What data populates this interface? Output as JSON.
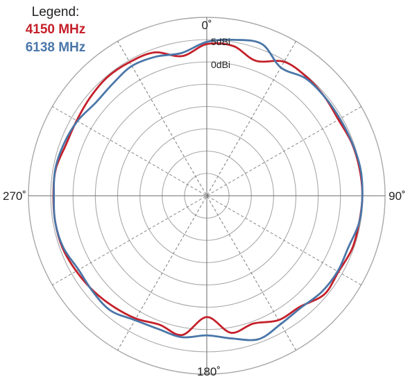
{
  "legend": {
    "title": "Legend:",
    "entries": [
      {
        "label": "4150 MHz",
        "color": "#c4202a"
      },
      {
        "label": "6138 MHz",
        "color": "#4a76a8"
      }
    ]
  },
  "chart_data": {
    "type": "line",
    "projection": "polar",
    "angle_labels": [
      "0˚",
      "90˚",
      "180˚",
      "270˚"
    ],
    "ring_labels": [
      {
        "label": "5dBi",
        "value": 5
      },
      {
        "label": "0dBi",
        "value": 0
      }
    ],
    "radial_range_dbi": [
      -35,
      5
    ],
    "ring_step_dbi": 5,
    "angle_grid_step_deg": 30,
    "series": [
      {
        "name": "4150 MHz",
        "color": "#c4202a",
        "theta_deg": [
          0,
          10,
          20,
          30,
          40,
          50,
          60,
          70,
          80,
          90,
          100,
          110,
          120,
          130,
          140,
          150,
          160,
          170,
          180,
          190,
          200,
          210,
          220,
          230,
          240,
          250,
          260,
          270,
          280,
          290,
          300,
          310,
          320,
          330,
          340,
          350,
          360
        ],
        "gain_dbi": [
          -1,
          -0.9,
          -2.8,
          -0.3,
          -0.2,
          -0.5,
          -0.9,
          -0.4,
          -0.2,
          -0.1,
          -0.3,
          -0.3,
          -0.9,
          -0.6,
          -2.5,
          -2.8,
          -4.5,
          -3.8,
          -7.8,
          -3.3,
          -4.2,
          -3.2,
          -2.5,
          -1.8,
          -1.2,
          -0.6,
          -0.5,
          -0.6,
          -0.6,
          -1.4,
          -1.3,
          -0.8,
          -0.3,
          -0.4,
          -0.8,
          -3.2,
          -1
        ]
      },
      {
        "name": "6138 MHz",
        "color": "#4a76a8",
        "theta_deg": [
          0,
          10,
          20,
          30,
          40,
          50,
          60,
          70,
          80,
          90,
          100,
          110,
          120,
          130,
          140,
          150,
          160,
          170,
          180,
          190,
          200,
          210,
          220,
          230,
          240,
          250,
          260,
          270,
          280,
          290,
          300,
          310,
          320,
          330,
          340,
          350,
          360
        ],
        "gain_dbi": [
          -0.5,
          0.5,
          1.2,
          -1.8,
          -0.6,
          -0.5,
          -0.5,
          -0.3,
          0,
          -0.1,
          -0.3,
          -1.2,
          -1.1,
          -1.4,
          -2.2,
          -1.8,
          -0.8,
          -2.5,
          -3.7,
          -2.8,
          -3.2,
          -2.8,
          -1.4,
          -1.6,
          -1.8,
          -0.8,
          -0.5,
          -0.7,
          -0.5,
          -0.9,
          -1.5,
          -2.5,
          -2.2,
          -1.4,
          -1.8,
          -2.5,
          -0.5
        ]
      }
    ]
  }
}
